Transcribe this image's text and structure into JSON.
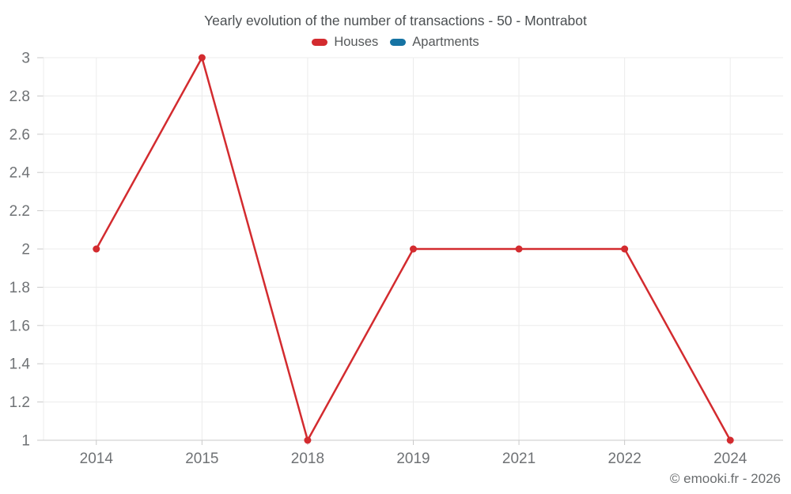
{
  "chart_data": {
    "type": "line",
    "title": "Yearly evolution of the number of transactions - 50 - Montrabot",
    "footer": "© emooki.fr - 2026",
    "categories": [
      "2014",
      "2015",
      "2018",
      "2019",
      "2021",
      "2022",
      "2024"
    ],
    "series": [
      {
        "name": "Houses",
        "color": "#d32b2f",
        "values": [
          2,
          3,
          1,
          2,
          2,
          2,
          1
        ]
      },
      {
        "name": "Apartments",
        "color": "#1673a3",
        "values": []
      }
    ],
    "ylim": [
      1,
      3
    ],
    "y_ticks": [
      1,
      1.2,
      1.4,
      1.6,
      1.8,
      2,
      2.2,
      2.4,
      2.6,
      2.8,
      3
    ],
    "grid": true,
    "legend_position": "top",
    "colors": {
      "gridline": "#ececec",
      "axis": "#c9c9c9",
      "axis_text": "#6f7275"
    }
  }
}
